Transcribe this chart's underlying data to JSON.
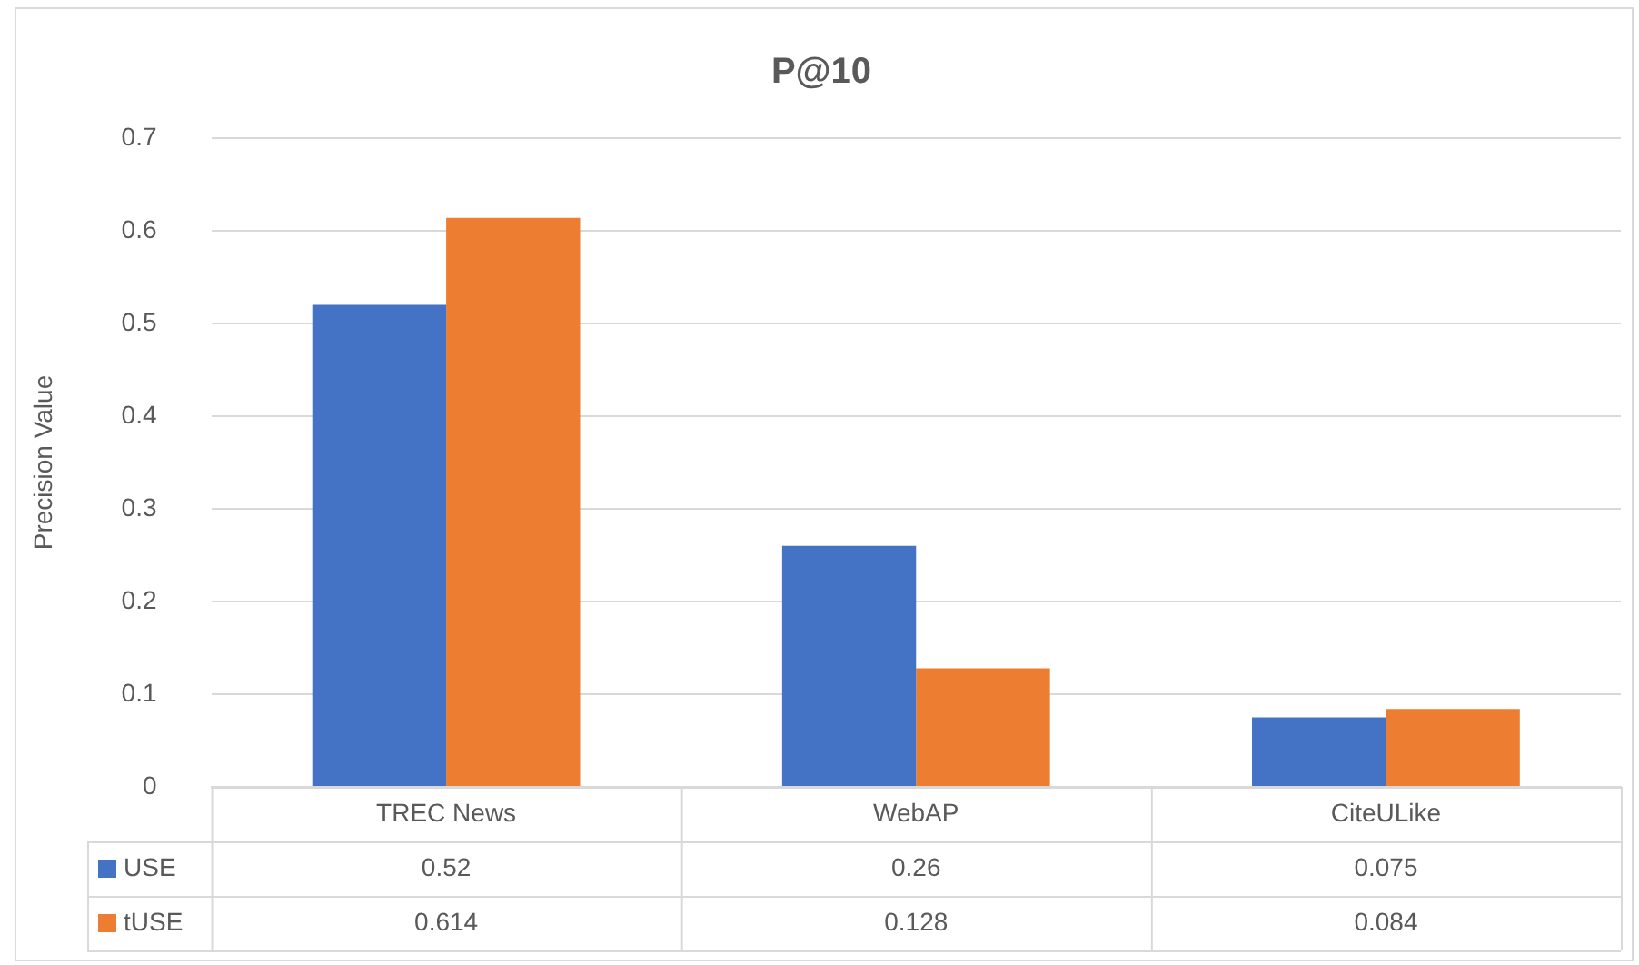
{
  "chart_data": {
    "type": "bar",
    "title": "P@10",
    "ylabel": "Precision Value",
    "categories": [
      "TREC News",
      "WebAP",
      "CiteULike"
    ],
    "series": [
      {
        "name": "USE",
        "color": "#4472c4",
        "values": [
          0.52,
          0.26,
          0.075
        ]
      },
      {
        "name": "tUSE",
        "color": "#ed7d31",
        "values": [
          0.614,
          0.128,
          0.084
        ]
      }
    ],
    "ylim": [
      0,
      0.7
    ],
    "yticks": [
      0,
      0.1,
      0.2,
      0.3,
      0.4,
      0.5,
      0.6,
      0.7
    ],
    "grid": "y",
    "legend": "bottom left",
    "data_labels": true
  }
}
